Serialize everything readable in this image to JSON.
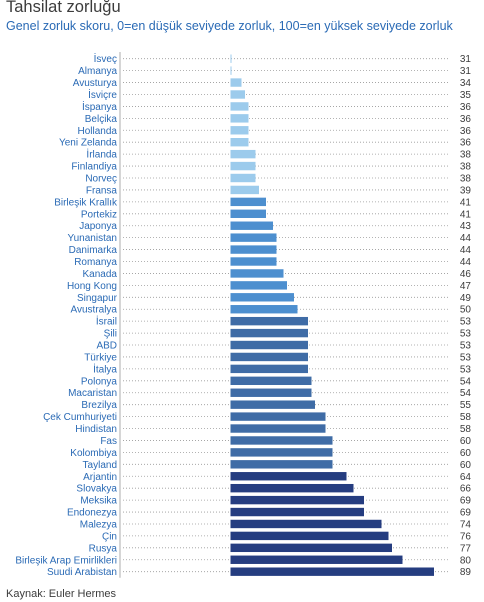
{
  "title": "Tahsilat zorluğu",
  "subtitle": "Genel zorluk skoru, 0=en düşük seviyede zorluk, 100=en yüksek seviyede zorluk",
  "source": "Kaynak: Euler Hermes",
  "colors": {
    "tier_light": "#9ccbec",
    "tier_mid": "#4d8fcf",
    "tier_steel": "#3f6ca6",
    "tier_dark": "#253d80",
    "label_text": "#2a6ab5",
    "value_text": "#3c3c3c"
  },
  "chart_data": {
    "type": "bar",
    "orientation": "horizontal",
    "title": "Tahsilat zorluğu",
    "subtitle": "Genel zorluk skoru, 0=en düşük seviyede zorluk, 100=en yüksek seviyede zorluk",
    "xlim": [
      0,
      100
    ],
    "grid": false,
    "categories": [
      "İsveç",
      "Almanya",
      "Avusturya",
      "İsviçre",
      "İspanya",
      "Belçika",
      "Hollanda",
      "Yeni Zelanda",
      "İrlanda",
      "Finlandiya",
      "Norveç",
      "Fransa",
      "Birleşik Krallık",
      "Portekiz",
      "Japonya",
      "Yunanistan",
      "Danimarka",
      "Romanya",
      "Kanada",
      "Hong Kong",
      "Singapur",
      "Avustralya",
      "İsrail",
      "Şili",
      "ABD",
      "Türkiye",
      "İtalya",
      "Polonya",
      "Macaristan",
      "Brezilya",
      "Çek Cumhuriyeti",
      "Hindistan",
      "Fas",
      "Kolombiya",
      "Tayland",
      "Arjantin",
      "Slovakya",
      "Meksika",
      "Endonezya",
      "Malezya",
      "Çin",
      "Rusya",
      "Birleşik Arap Emirlikleri",
      "Suudi Arabistan"
    ],
    "values": [
      31,
      31,
      34,
      35,
      36,
      36,
      36,
      36,
      38,
      38,
      38,
      39,
      41,
      41,
      43,
      44,
      44,
      44,
      46,
      47,
      49,
      50,
      53,
      53,
      53,
      53,
      53,
      54,
      54,
      55,
      58,
      58,
      60,
      60,
      60,
      64,
      66,
      69,
      69,
      74,
      76,
      77,
      80,
      89
    ],
    "tiers": [
      "light",
      "light",
      "light",
      "light",
      "light",
      "light",
      "light",
      "light",
      "light",
      "light",
      "light",
      "light",
      "mid",
      "mid",
      "mid",
      "mid",
      "mid",
      "mid",
      "mid",
      "mid",
      "mid",
      "mid",
      "steel",
      "steel",
      "steel",
      "steel",
      "steel",
      "steel",
      "steel",
      "steel",
      "steel",
      "steel",
      "steel",
      "steel",
      "steel",
      "dark",
      "dark",
      "dark",
      "dark",
      "dark",
      "dark",
      "dark",
      "dark",
      "dark"
    ]
  }
}
